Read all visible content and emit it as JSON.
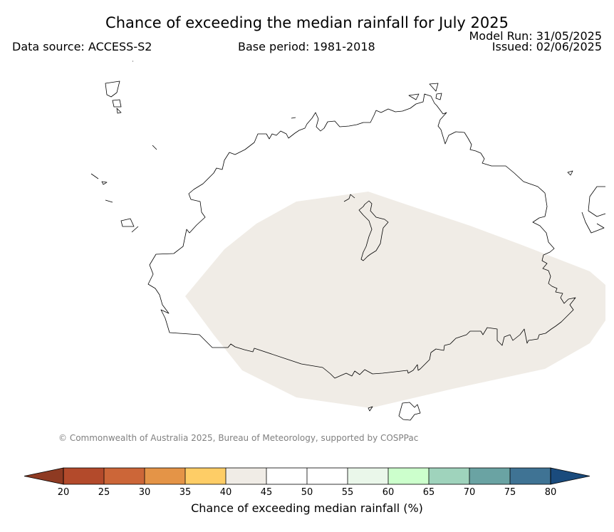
{
  "title": "Chance of exceeding the median rainfall for July 2025",
  "data_source": "Data source: ACCESS-S2",
  "base_period": "Base period: 1981-2018",
  "model_run": "Model Run: 31/05/2025",
  "issued": "Issued: 02/06/2025",
  "credit": "© Commonwealth of Australia 2025, Bureau of Meteorology, supported by COSPPac",
  "map": {
    "shaded_category": "40-45",
    "shaded_color": "#f0ece6"
  },
  "colorbar": {
    "label": "Chance of exceeding median rainfall (%)",
    "ticks": [
      "20",
      "25",
      "30",
      "35",
      "40",
      "45",
      "50",
      "55",
      "60",
      "65",
      "70",
      "75",
      "80"
    ],
    "under_color": "#8e3a22",
    "over_color": "#1a4b7d",
    "bins": [
      {
        "range": "20-25",
        "color": "#b34a2b"
      },
      {
        "range": "25-30",
        "color": "#cc6638"
      },
      {
        "range": "30-35",
        "color": "#e49447"
      },
      {
        "range": "35-40",
        "color": "#fecd66"
      },
      {
        "range": "40-45",
        "color": "#f0ece6"
      },
      {
        "range": "45-50",
        "color": "#ffffff"
      },
      {
        "range": "50-55",
        "color": "#ffffff"
      },
      {
        "range": "55-60",
        "color": "#eaf7ea"
      },
      {
        "range": "60-65",
        "color": "#ccffcc"
      },
      {
        "range": "65-70",
        "color": "#9fd3bc"
      },
      {
        "range": "70-75",
        "color": "#6aa3a3"
      },
      {
        "range": "75-80",
        "color": "#3f7394"
      }
    ]
  }
}
